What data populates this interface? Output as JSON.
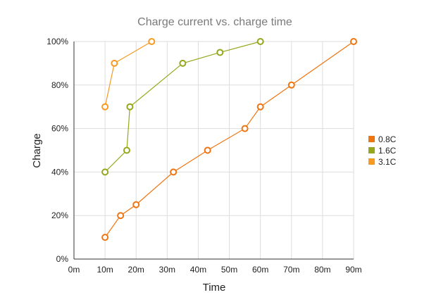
{
  "chart_data": {
    "type": "line",
    "title": "Charge current vs. charge time",
    "xlabel": "Time",
    "ylabel": "Charge",
    "xlim": [
      0,
      90
    ],
    "ylim": [
      0,
      100
    ],
    "x_ticks": [
      "0m",
      "10m",
      "20m",
      "30m",
      "40m",
      "50m",
      "60m",
      "70m",
      "80m",
      "90m"
    ],
    "y_ticks": [
      "0%",
      "20%",
      "40%",
      "60%",
      "80%",
      "100%"
    ],
    "grid": true,
    "legend_position": "right",
    "series": [
      {
        "name": "0.8C",
        "color": "#f0740f",
        "x": [
          10,
          15,
          20,
          32,
          43,
          55,
          60,
          70,
          90
        ],
        "y": [
          10,
          20,
          25,
          40,
          50,
          60,
          70,
          80,
          100
        ]
      },
      {
        "name": "1.6C",
        "color": "#96a71b",
        "x": [
          10,
          17,
          18,
          35,
          47,
          60
        ],
        "y": [
          40,
          50,
          70,
          90,
          95,
          100
        ]
      },
      {
        "name": "3.1C",
        "color": "#f79a1f",
        "x": [
          10,
          13,
          25
        ],
        "y": [
          70,
          90,
          100
        ]
      }
    ]
  }
}
